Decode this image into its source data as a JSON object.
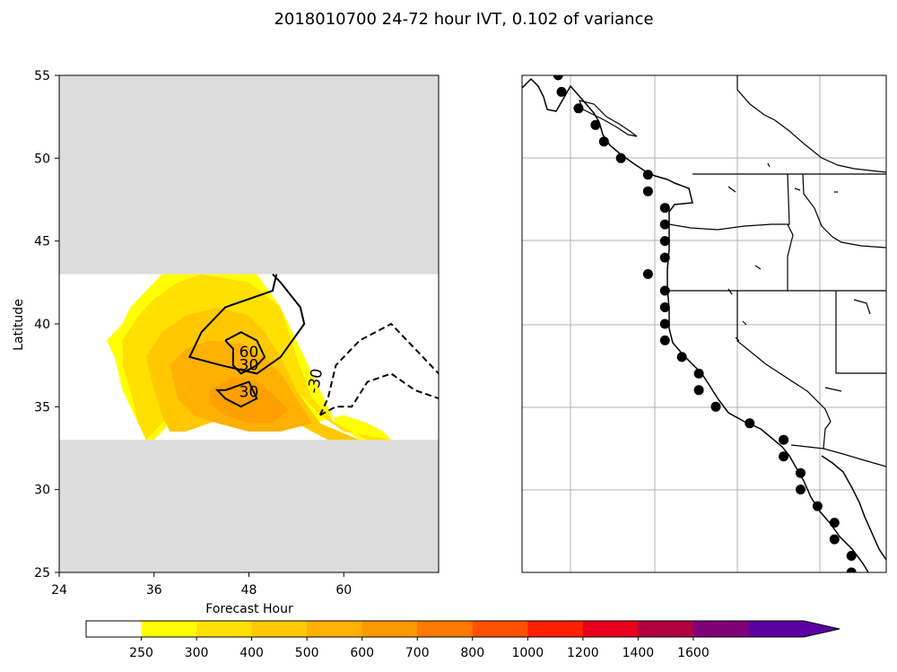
{
  "figure": {
    "title": "2018010700 24-72 hour IVT, 0.102 of variance"
  },
  "chart_data": [
    {
      "type": "contour",
      "xlabel": "Forecast Hour",
      "ylabel": "Latitude",
      "xlim": [
        24,
        72
      ],
      "ylim": [
        25,
        55
      ],
      "xticks": [
        24,
        36,
        48,
        60
      ],
      "yticks": [
        25,
        30,
        35,
        40,
        45,
        50,
        55
      ],
      "masked_latitude_bands": [
        [
          25,
          33
        ],
        [
          43,
          55
        ]
      ],
      "mask_color": "#dcdcdc",
      "filled_levels": [
        {
          "label": "250",
          "color": "#ffff00",
          "polygon": [
            [
              30,
              39
            ],
            [
              32,
              40
            ],
            [
              33,
              41
            ],
            [
              35,
              42
            ],
            [
              37,
              43
            ],
            [
              38,
              43
            ],
            [
              49,
              43
            ],
            [
              52,
              41
            ],
            [
              55,
              38
            ],
            [
              57,
              36
            ],
            [
              59,
              34
            ],
            [
              62,
              33
            ],
            [
              66,
              33
            ],
            [
              65,
              33.5
            ],
            [
              63,
              34
            ],
            [
              60,
              34.5
            ],
            [
              56,
              34
            ],
            [
              53,
              34.5
            ],
            [
              50,
              35
            ],
            [
              46,
              35.5
            ],
            [
              40,
              35
            ],
            [
              38,
              34
            ],
            [
              36,
              33
            ],
            [
              35,
              33
            ],
            [
              34,
              34
            ],
            [
              32,
              36
            ],
            [
              31,
              38
            ]
          ]
        },
        {
          "label": "300",
          "color": "#ffe000",
          "polygon": [
            [
              32,
              39
            ],
            [
              34,
              40.5
            ],
            [
              36,
              41.5
            ],
            [
              39,
              42.5
            ],
            [
              42,
              43
            ],
            [
              48,
              42.5
            ],
            [
              52,
              41
            ],
            [
              54,
              38
            ],
            [
              56,
              35.5
            ],
            [
              59,
              34
            ],
            [
              63,
              33
            ],
            [
              66,
              33
            ],
            [
              60,
              33.5
            ],
            [
              57,
              34.5
            ],
            [
              54,
              36
            ],
            [
              50,
              36.5
            ],
            [
              47,
              36.5
            ],
            [
              42,
              36
            ],
            [
              39,
              35
            ],
            [
              37,
              34
            ],
            [
              35,
              33
            ],
            [
              34,
              34
            ],
            [
              33,
              36
            ],
            [
              32,
              37.5
            ]
          ]
        },
        {
          "label": "400",
          "color": "#ffc800",
          "polygon": [
            [
              35,
              38
            ],
            [
              37,
              39.5
            ],
            [
              40,
              40.5
            ],
            [
              44,
              41
            ],
            [
              48,
              40.5
            ],
            [
              50,
              39.5
            ],
            [
              52,
              38
            ],
            [
              54,
              36
            ],
            [
              57,
              34
            ],
            [
              62,
              33
            ],
            [
              58,
              33
            ],
            [
              54,
              34
            ],
            [
              50,
              34.5
            ],
            [
              46,
              34.5
            ],
            [
              43,
              34
            ],
            [
              40,
              33.5
            ],
            [
              38,
              33.5
            ],
            [
              37,
              34.5
            ],
            [
              36,
              36
            ]
          ]
        },
        {
          "label": "500",
          "color": "#ffb000",
          "polygon": [
            [
              38,
              37.5
            ],
            [
              40,
              38.5
            ],
            [
              43,
              39
            ],
            [
              47,
              38.8
            ],
            [
              50,
              38
            ],
            [
              52,
              37
            ],
            [
              54,
              35.5
            ],
            [
              56,
              34
            ],
            [
              52,
              33.5
            ],
            [
              48,
              33.5
            ],
            [
              44,
              34
            ],
            [
              41,
              34.5
            ],
            [
              39,
              35.5
            ]
          ]
        },
        {
          "label": "600",
          "color": "#ffa000",
          "polygon": [
            [
              43,
              36
            ],
            [
              46,
              36.8
            ],
            [
              49,
              36.5
            ],
            [
              51,
              35.8
            ],
            [
              53,
              34.8
            ],
            [
              51,
              34
            ],
            [
              48,
              34
            ],
            [
              45,
              34.5
            ],
            [
              43,
              35.2
            ]
          ]
        }
      ],
      "contours": [
        {
          "label": "60",
          "style": "solid",
          "points": [
            [
              45,
              39
            ],
            [
              47,
              39.5
            ],
            [
              49,
              39
            ],
            [
              50,
              38
            ],
            [
              49,
              37.5
            ],
            [
              47,
              37
            ],
            [
              46,
              37.5
            ],
            [
              46,
              38.5
            ],
            [
              45,
              39
            ]
          ]
        },
        {
          "label": "30",
          "style": "solid",
          "points": [
            [
              51.5,
              43
            ],
            [
              51,
              42
            ],
            [
              45,
              41
            ],
            [
              42,
              39.5
            ],
            [
              40.5,
              38
            ],
            [
              44.5,
              37.5
            ],
            [
              49,
              37
            ],
            [
              52,
              38
            ],
            [
              55,
              40
            ],
            [
              54.5,
              41
            ],
            [
              52,
              42.5
            ],
            [
              51,
              43
            ]
          ]
        },
        {
          "label": "30",
          "style": "solid",
          "points": [
            [
              45,
              36
            ],
            [
              48,
              36.5
            ],
            [
              49,
              35.5
            ],
            [
              47,
              35
            ],
            [
              45,
              35.5
            ],
            [
              44,
              36
            ],
            [
              45,
              36
            ]
          ]
        },
        {
          "label": "-30",
          "style": "dashed",
          "points": [
            [
              57,
              34.5
            ],
            [
              58,
              35.5
            ],
            [
              59,
              37.5
            ],
            [
              62,
              39
            ],
            [
              66,
              40
            ],
            [
              69,
              38.5
            ],
            [
              72,
              37
            ]
          ]
        },
        {
          "label": "",
          "style": "dashed",
          "points": [
            [
              57,
              34.5
            ],
            [
              59,
              35
            ],
            [
              61,
              35
            ],
            [
              63,
              36.5
            ],
            [
              66,
              37
            ],
            [
              69,
              36
            ],
            [
              72,
              35.5
            ]
          ]
        }
      ]
    },
    {
      "type": "map",
      "region": "US West Coast",
      "grid": true,
      "markers": [
        {
          "lat": 55,
          "lon": -130.7
        },
        {
          "lat": 54,
          "lon": -130.5
        },
        {
          "lat": 53,
          "lon": -129.5
        },
        {
          "lat": 52,
          "lon": -128.5
        },
        {
          "lat": 51,
          "lon": -128
        },
        {
          "lat": 50,
          "lon": -127
        },
        {
          "lat": 49,
          "lon": -125.4
        },
        {
          "lat": 48,
          "lon": -125.4
        },
        {
          "lat": 47,
          "lon": -124.4
        },
        {
          "lat": 46,
          "lon": -124.4
        },
        {
          "lat": 45,
          "lon": -124.4
        },
        {
          "lat": 44,
          "lon": -124.4
        },
        {
          "lat": 43,
          "lon": -125.4
        },
        {
          "lat": 42,
          "lon": -124.4
        },
        {
          "lat": 41,
          "lon": -124.4
        },
        {
          "lat": 40,
          "lon": -124.4
        },
        {
          "lat": 39,
          "lon": -124.4
        },
        {
          "lat": 38,
          "lon": -123.4
        },
        {
          "lat": 37,
          "lon": -122.4
        },
        {
          "lat": 36,
          "lon": -122.4
        },
        {
          "lat": 35,
          "lon": -121.4
        },
        {
          "lat": 34,
          "lon": -119.4
        },
        {
          "lat": 33,
          "lon": -117.4
        },
        {
          "lat": 32,
          "lon": -117.4
        },
        {
          "lat": 31,
          "lon": -116.4
        },
        {
          "lat": 30,
          "lon": -116.4
        },
        {
          "lat": 29,
          "lon": -115.4
        },
        {
          "lat": 28,
          "lon": -114.4
        },
        {
          "lat": 27,
          "lon": -114.4
        },
        {
          "lat": 26,
          "lon": -113.4
        },
        {
          "lat": 25,
          "lon": -113.4
        }
      ]
    }
  ],
  "colorbar": {
    "tick_labels": [
      "250",
      "300",
      "400",
      "500",
      "600",
      "700",
      "800",
      "1000",
      "1200",
      "1400",
      "1600"
    ],
    "colors": [
      "#ffffff",
      "#ffff00",
      "#ffe000",
      "#ffc800",
      "#ffb000",
      "#ff9800",
      "#ff7800",
      "#ff5000",
      "#ff2000",
      "#e8001c",
      "#b00040",
      "#800078",
      "#5a00a0"
    ],
    "extend": "max"
  }
}
